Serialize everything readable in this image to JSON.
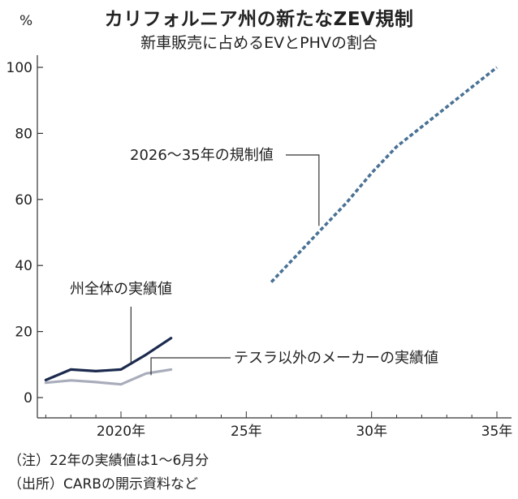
{
  "header": {
    "title": "カリフォルニア州の新たなZEV規制",
    "subtitle": "新車販売に占めるEVとPHVの割合",
    "unit": "%"
  },
  "notes": {
    "note1": "（注）22年の実績値は1～6月分",
    "note2": "（出所）CARBの開示資料など"
  },
  "chart_data": {
    "type": "line",
    "title": "カリフォルニア州の新たなZEV規制",
    "subtitle": "新車販売に占めるEVとPHVの割合",
    "ylabel": "%",
    "xlabel": "",
    "xlim": [
      2016.5,
      2035.5
    ],
    "ylim": [
      0,
      100
    ],
    "x_ticks": [
      {
        "value": 2020,
        "label": "2020年"
      },
      {
        "value": 2025,
        "label": "25年"
      },
      {
        "value": 2030,
        "label": "30年"
      },
      {
        "value": 2035,
        "label": "35年"
      }
    ],
    "y_ticks": [
      0,
      20,
      40,
      60,
      80,
      100
    ],
    "grid": false,
    "series": [
      {
        "name": "州全体の実績値",
        "style": "solid",
        "color": "#1b2a4e",
        "x": [
          2017,
          2018,
          2019,
          2020,
          2021,
          2022
        ],
        "values": [
          5.3,
          8.5,
          8.0,
          8.5,
          13.0,
          18.0
        ]
      },
      {
        "name": "テスラ以外のメーカーの実績値",
        "style": "solid",
        "color": "#a9adbb",
        "x": [
          2017,
          2018,
          2019,
          2020,
          2021,
          2022
        ],
        "values": [
          4.5,
          5.2,
          4.7,
          4.0,
          7.3,
          8.5
        ]
      },
      {
        "name": "2026～35年の規制値",
        "style": "dashed",
        "color": "#4a7296",
        "x": [
          2026,
          2027,
          2028,
          2029,
          2030,
          2031,
          2032,
          2033,
          2034,
          2035
        ],
        "values": [
          35,
          43,
          51,
          59,
          68,
          76,
          82,
          88,
          94,
          100
        ]
      }
    ]
  }
}
